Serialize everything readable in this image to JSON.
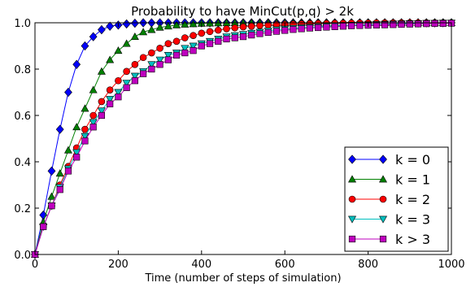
{
  "chart_data": {
    "type": "line",
    "title": "Probability to have MinCut(p,q) > 2k",
    "xlabel": "Time (number of steps of simulation)",
    "ylabel": "",
    "xlim": [
      0,
      1000
    ],
    "ylim": [
      0.0,
      1.0
    ],
    "xticks": [
      0,
      200,
      400,
      600,
      800,
      1000
    ],
    "xtick_labels": [
      "0",
      "200",
      "400",
      "600",
      "800",
      "1000"
    ],
    "yticks": [
      0.0,
      0.2,
      0.4,
      0.6,
      0.8,
      1.0
    ],
    "ytick_labels": [
      "0.0",
      "0.2",
      "0.4",
      "0.6",
      "0.8",
      "1.0"
    ],
    "grid": false,
    "legend_position": "bottom-right",
    "x": [
      0,
      20,
      40,
      60,
      80,
      100,
      120,
      140,
      160,
      180,
      200,
      220,
      240,
      260,
      280,
      300,
      320,
      340,
      360,
      380,
      400,
      420,
      440,
      460,
      480,
      500,
      520,
      540,
      560,
      580,
      600,
      620,
      640,
      660,
      680,
      700,
      720,
      740,
      760,
      780,
      800,
      820,
      840,
      860,
      880,
      900,
      920,
      940,
      960,
      980,
      1000
    ],
    "series": [
      {
        "name": "k = 0",
        "color": "#0000ff",
        "marker": "diamond",
        "values": [
          0.0,
          0.17,
          0.36,
          0.54,
          0.7,
          0.82,
          0.9,
          0.94,
          0.97,
          0.985,
          0.99,
          0.995,
          0.998,
          1.0,
          1.0,
          1.0,
          1.0,
          1.0,
          1.0,
          1.0,
          1.0,
          1.0,
          1.0,
          1.0,
          1.0,
          1.0,
          1.0,
          1.0,
          1.0,
          1.0,
          1.0,
          1.0,
          1.0,
          1.0,
          1.0,
          1.0,
          1.0,
          1.0,
          1.0,
          1.0,
          1.0,
          1.0,
          1.0,
          1.0,
          1.0,
          1.0,
          1.0,
          1.0,
          1.0,
          1.0,
          1.0
        ]
      },
      {
        "name": "k = 1",
        "color": "#008000",
        "marker": "triangle-up",
        "values": [
          0.0,
          0.14,
          0.25,
          0.35,
          0.45,
          0.55,
          0.63,
          0.71,
          0.79,
          0.84,
          0.88,
          0.91,
          0.94,
          0.96,
          0.97,
          0.98,
          0.985,
          0.99,
          0.993,
          0.995,
          0.997,
          0.998,
          0.999,
          1.0,
          1.0,
          1.0,
          1.0,
          1.0,
          1.0,
          1.0,
          1.0,
          1.0,
          1.0,
          1.0,
          1.0,
          1.0,
          1.0,
          1.0,
          1.0,
          1.0,
          1.0,
          1.0,
          1.0,
          1.0,
          1.0,
          1.0,
          1.0,
          1.0,
          1.0,
          1.0,
          1.0
        ]
      },
      {
        "name": "k = 2",
        "color": "#ff0000",
        "marker": "circle",
        "values": [
          0.0,
          0.12,
          0.21,
          0.3,
          0.38,
          0.46,
          0.54,
          0.6,
          0.66,
          0.71,
          0.75,
          0.79,
          0.82,
          0.85,
          0.87,
          0.89,
          0.91,
          0.92,
          0.935,
          0.945,
          0.955,
          0.962,
          0.968,
          0.974,
          0.978,
          0.982,
          0.985,
          0.988,
          0.99,
          0.992,
          0.993,
          0.994,
          0.995,
          0.996,
          0.997,
          0.997,
          0.998,
          0.998,
          0.999,
          0.999,
          0.999,
          1.0,
          1.0,
          1.0,
          1.0,
          1.0,
          1.0,
          1.0,
          1.0,
          1.0,
          1.0
        ]
      },
      {
        "name": "k = 3",
        "color": "#00bfbf",
        "marker": "triangle-down",
        "values": [
          0.0,
          0.12,
          0.21,
          0.29,
          0.37,
          0.44,
          0.51,
          0.57,
          0.62,
          0.67,
          0.7,
          0.74,
          0.77,
          0.79,
          0.82,
          0.84,
          0.86,
          0.87,
          0.89,
          0.9,
          0.91,
          0.92,
          0.93,
          0.94,
          0.945,
          0.95,
          0.955,
          0.96,
          0.965,
          0.97,
          0.973,
          0.976,
          0.979,
          0.981,
          0.983,
          0.985,
          0.987,
          0.989,
          0.99,
          0.991,
          0.992,
          0.993,
          0.994,
          0.995,
          0.996,
          0.997,
          0.997,
          0.998,
          0.998,
          0.999,
          0.999
        ]
      },
      {
        "name": "k > 3",
        "color": "#bf00bf",
        "marker": "square",
        "values": [
          0.0,
          0.12,
          0.21,
          0.28,
          0.36,
          0.42,
          0.49,
          0.55,
          0.6,
          0.65,
          0.68,
          0.72,
          0.75,
          0.78,
          0.8,
          0.82,
          0.84,
          0.86,
          0.87,
          0.88,
          0.9,
          0.91,
          0.92,
          0.93,
          0.935,
          0.94,
          0.947,
          0.953,
          0.958,
          0.963,
          0.967,
          0.971,
          0.974,
          0.977,
          0.979,
          0.981,
          0.983,
          0.985,
          0.987,
          0.988,
          0.989,
          0.99,
          0.991,
          0.992,
          0.993,
          0.994,
          0.995,
          0.996,
          0.997,
          0.997,
          0.998
        ]
      }
    ]
  }
}
